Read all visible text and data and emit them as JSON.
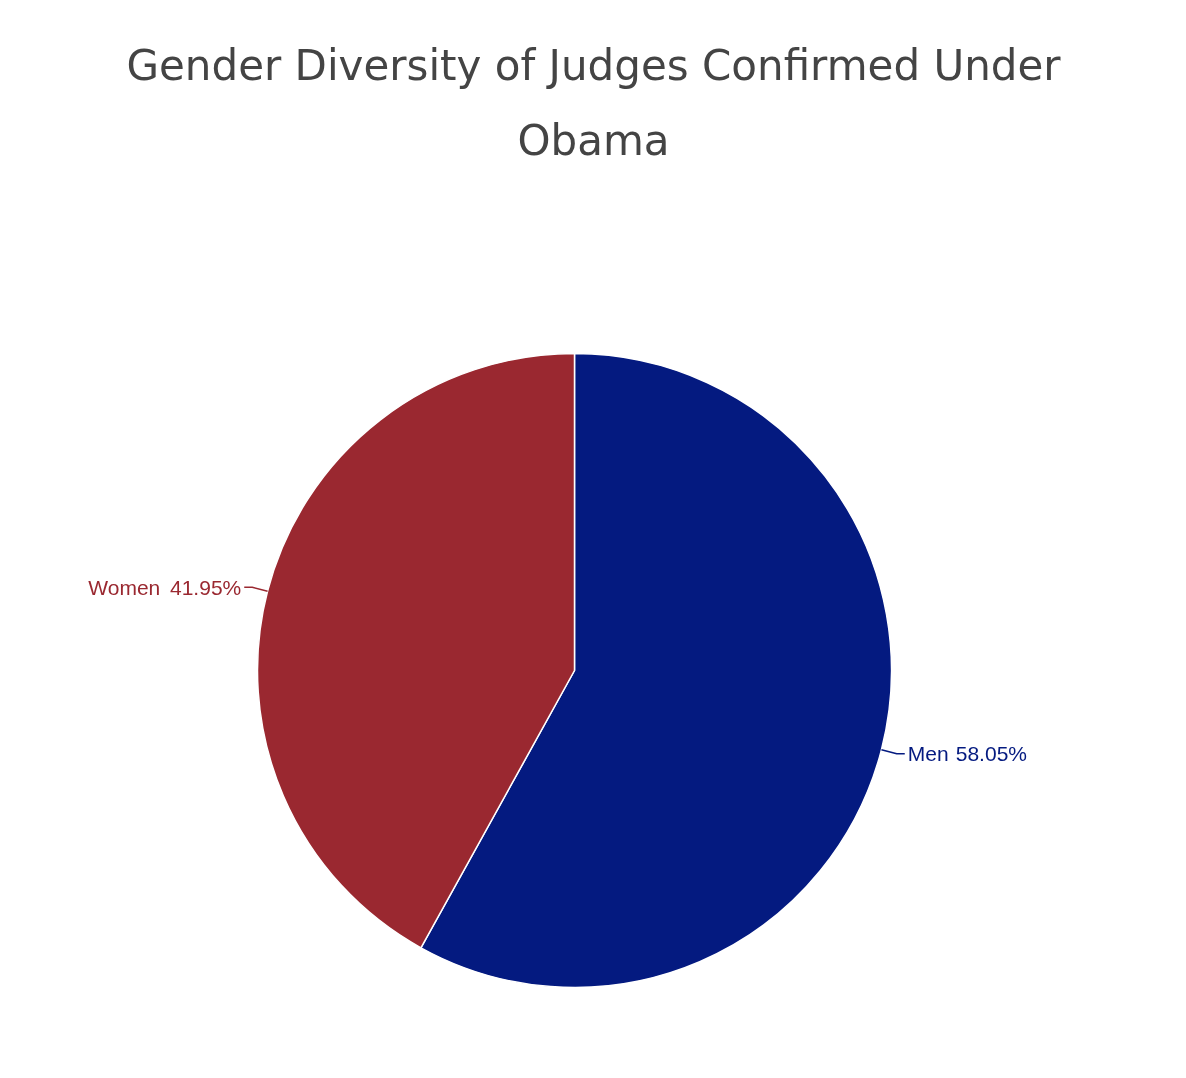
{
  "chart_data": {
    "type": "pie",
    "title": "Gender Diversity of Judges Confirmed Under Obama",
    "categories": [
      "Men",
      "Women"
    ],
    "values": [
      58.05,
      41.95
    ],
    "value_labels": [
      "58.05%",
      "41.95%"
    ],
    "colors": [
      "#041a80",
      "#9a2830"
    ]
  }
}
